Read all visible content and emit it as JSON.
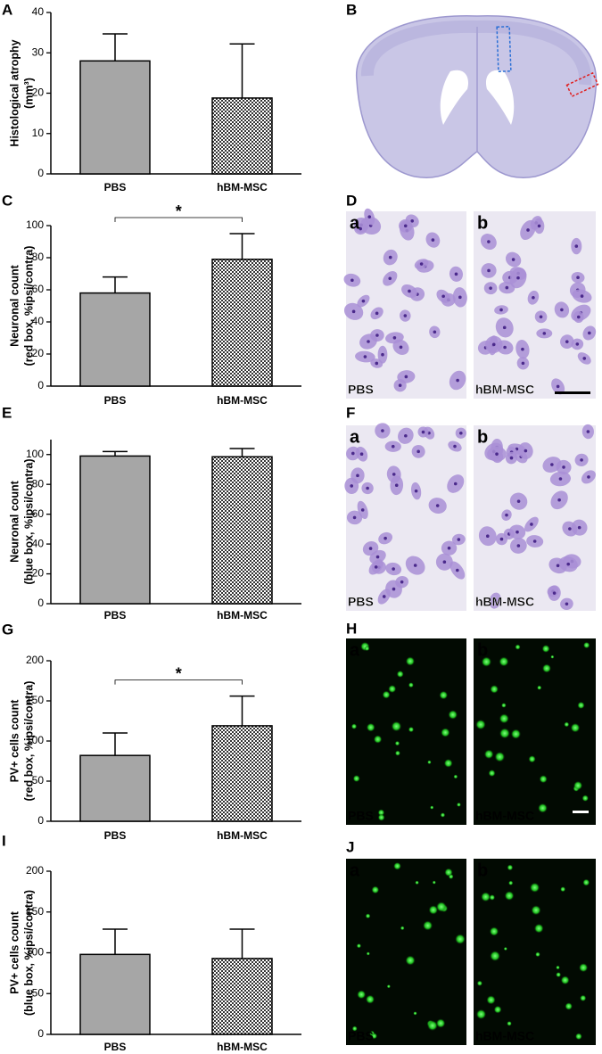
{
  "chart_data": [
    {
      "type": "bar",
      "panel": "A",
      "ylabel": [
        "Histological atrophy",
        "(mm³)"
      ],
      "categories": [
        "PBS",
        "hBM-MSC"
      ],
      "values": [
        28,
        18.8
      ],
      "errors": [
        6.7,
        13.4
      ],
      "fills": [
        "solid",
        "checker"
      ],
      "color": "#a6a6a6",
      "ylim": [
        0,
        40
      ],
      "yticks": [
        0,
        10,
        20,
        30,
        40
      ]
    },
    {
      "type": "bar",
      "panel": "C",
      "ylabel": [
        "Neuronal count",
        "(red box, %ipsi/contra)"
      ],
      "categories": [
        "PBS",
        "hBM-MSC"
      ],
      "values": [
        58,
        79
      ],
      "errors": [
        10,
        16
      ],
      "fills": [
        "solid",
        "checker"
      ],
      "color": "#a6a6a6",
      "ylim": [
        0,
        100
      ],
      "yticks": [
        0,
        20,
        40,
        60,
        80,
        100
      ],
      "significance": "*"
    },
    {
      "type": "bar",
      "panel": "E",
      "ylabel": [
        "Neuronal count",
        "(blue box, %ipsi/contra)"
      ],
      "categories": [
        "PBS",
        "hBM-MSC"
      ],
      "values": [
        99,
        98.5
      ],
      "errors": [
        3,
        5.5
      ],
      "fills": [
        "solid",
        "checker"
      ],
      "color": "#a6a6a6",
      "ylim": [
        0,
        110
      ],
      "yticks": [
        0,
        20,
        40,
        60,
        80,
        100
      ]
    },
    {
      "type": "bar",
      "panel": "G",
      "ylabel": [
        "PV+ cells count",
        "(red box, %ipsi/contra)"
      ],
      "categories": [
        "PBS",
        "hBM-MSC"
      ],
      "values": [
        82,
        119
      ],
      "errors": [
        28,
        37
      ],
      "fills": [
        "solid",
        "checker"
      ],
      "color": "#a6a6a6",
      "ylim": [
        0,
        200
      ],
      "yticks": [
        0,
        50,
        100,
        150,
        200
      ],
      "significance": "*"
    },
    {
      "type": "bar",
      "panel": "I",
      "ylabel": [
        "PV+ cells count",
        "(blue box, %ipsi/contra)"
      ],
      "categories": [
        "PBS",
        "hBM-MSC"
      ],
      "values": [
        98,
        93
      ],
      "errors": [
        31,
        36
      ],
      "fills": [
        "solid",
        "checker"
      ],
      "color": "#a6a6a6",
      "ylim": [
        0,
        200
      ],
      "yticks": [
        0,
        50,
        100,
        150,
        200
      ]
    }
  ],
  "images": [
    {
      "panel": "B"
    },
    {
      "panel": "D",
      "tiles": [
        {
          "letter": "a",
          "label": "PBS"
        },
        {
          "letter": "b",
          "label": "hBM-MSC"
        }
      ]
    },
    {
      "panel": "F",
      "tiles": [
        {
          "letter": "a",
          "label": "PBS"
        },
        {
          "letter": "b",
          "label": "hBM-MSC"
        }
      ]
    },
    {
      "panel": "H",
      "tiles": [
        {
          "letter": "a",
          "label": "PBS"
        },
        {
          "letter": "b",
          "label": "hBM-MSC"
        }
      ]
    },
    {
      "panel": "J",
      "tiles": [
        {
          "letter": "a",
          "label": "PBS"
        },
        {
          "letter": "b",
          "label": "hBM-MSC"
        }
      ]
    }
  ]
}
